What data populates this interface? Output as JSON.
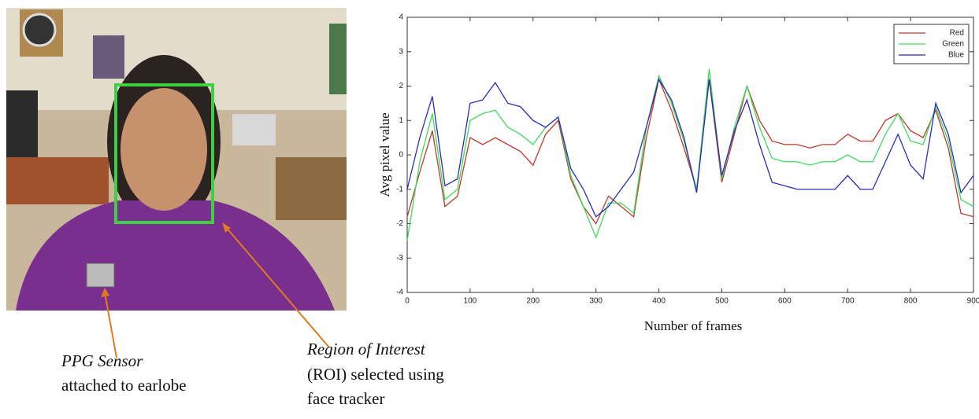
{
  "chart_data": {
    "type": "line",
    "x_label": "Number of frames",
    "y_label": "Avg pixel value",
    "x": [
      0,
      20,
      40,
      60,
      80,
      100,
      120,
      140,
      160,
      180,
      200,
      220,
      240,
      260,
      280,
      300,
      320,
      340,
      360,
      380,
      400,
      420,
      440,
      460,
      480,
      500,
      520,
      540,
      560,
      580,
      600,
      620,
      640,
      660,
      680,
      700,
      720,
      740,
      760,
      780,
      800,
      820,
      840,
      860,
      880,
      900
    ],
    "series": [
      {
        "name": "Red",
        "color": "#c0392b",
        "values": [
          -1.8,
          -0.5,
          0.7,
          -1.5,
          -1.2,
          0.5,
          0.3,
          0.5,
          0.3,
          0.1,
          -0.3,
          0.6,
          1.0,
          -0.7,
          -1.5,
          -2.0,
          -1.2,
          -1.5,
          -1.8,
          0.5,
          2.2,
          1.3,
          0.2,
          -1.0,
          2.2,
          -0.8,
          0.6,
          2.0,
          1.0,
          0.4,
          0.3,
          0.3,
          0.2,
          0.3,
          0.3,
          0.6,
          0.4,
          0.4,
          1.0,
          1.2,
          0.7,
          0.5,
          1.3,
          0.2,
          -1.7,
          -1.8
        ]
      },
      {
        "name": "Green",
        "color": "#3ddc5a",
        "values": [
          -2.5,
          -0.2,
          1.2,
          -1.3,
          -1.0,
          1.0,
          1.2,
          1.3,
          0.8,
          0.6,
          0.3,
          0.8,
          1.1,
          -0.6,
          -1.5,
          -2.4,
          -1.4,
          -1.4,
          -1.7,
          0.8,
          2.3,
          1.5,
          0.4,
          -1.0,
          2.5,
          -0.7,
          0.8,
          2.0,
          0.8,
          -0.1,
          -0.2,
          -0.2,
          -0.3,
          -0.2,
          -0.2,
          0.0,
          -0.2,
          -0.2,
          0.6,
          1.2,
          0.4,
          0.3,
          1.4,
          0.4,
          -1.3,
          -1.5
        ]
      },
      {
        "name": "Blue",
        "color": "#2b2bb8",
        "values": [
          -1.0,
          0.5,
          1.7,
          -0.9,
          -0.7,
          1.5,
          1.6,
          2.1,
          1.5,
          1.4,
          1.0,
          0.8,
          1.1,
          -0.4,
          -1.0,
          -1.8,
          -1.5,
          -1.0,
          -0.5,
          0.8,
          2.2,
          1.6,
          0.5,
          -1.1,
          2.2,
          -0.6,
          0.7,
          1.6,
          0.3,
          -0.8,
          -0.9,
          -1.0,
          -1.0,
          -1.0,
          -1.0,
          -0.6,
          -1.0,
          -1.0,
          -0.2,
          0.6,
          -0.3,
          -0.7,
          1.5,
          0.6,
          -1.1,
          -0.6
        ]
      }
    ],
    "xlim": [
      0,
      900
    ],
    "xticks": [
      0,
      100,
      200,
      300,
      400,
      500,
      600,
      700,
      800,
      900
    ],
    "ylim": [
      -4,
      4
    ],
    "yticks": [
      -4,
      -3,
      -2,
      -1,
      0,
      1,
      2,
      3,
      4
    ],
    "legend": "upper-right"
  },
  "photo_annotations": [
    {
      "title": "PPG Sensor",
      "lines": [
        "attached to earlobe"
      ]
    },
    {
      "title": "Region of Interest",
      "lines": [
        "(ROI) selected using",
        "face tracker"
      ]
    }
  ]
}
